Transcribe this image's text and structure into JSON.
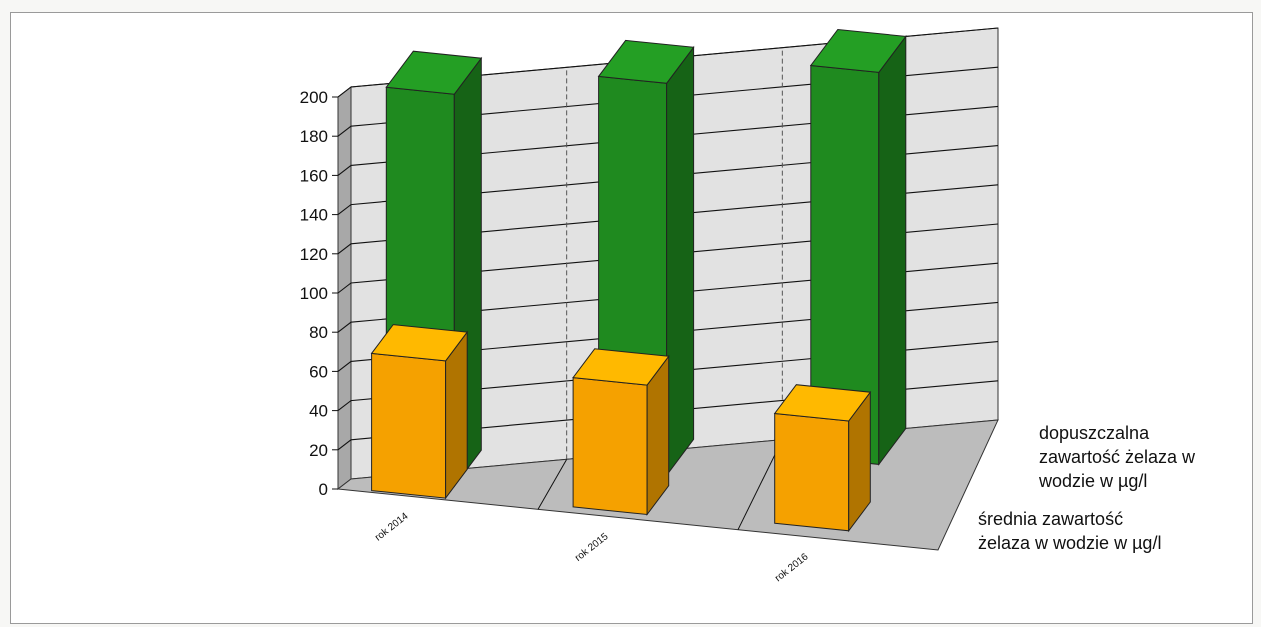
{
  "chart_data": {
    "type": "bar",
    "categories": [
      "rok 2014",
      "rok 2015",
      "rok 2016"
    ],
    "series": [
      {
        "name": "średnia zawartość żelaza w wodzie w µg/l",
        "values": [
          70,
          66,
          56
        ],
        "color": "#f5a100"
      },
      {
        "name": "dopuszczalna zawartość żelaza w wodzie w µg/l",
        "values": [
          200,
          200,
          200
        ],
        "color": "#1f8a1f"
      }
    ],
    "yticks": [
      "0",
      "20",
      "40",
      "60",
      "80",
      "100",
      "120",
      "140",
      "160",
      "180",
      "200"
    ],
    "ylim": [
      0,
      200
    ],
    "grid": true,
    "legend_position": "right",
    "legend_lines": [
      [
        "dopuszczalna",
        "zawartość  żelaza w",
        "wodzie  w µg/l"
      ],
      [
        "średnia zawartość",
        "żelaza  w wodzie  w µg/l"
      ]
    ]
  }
}
